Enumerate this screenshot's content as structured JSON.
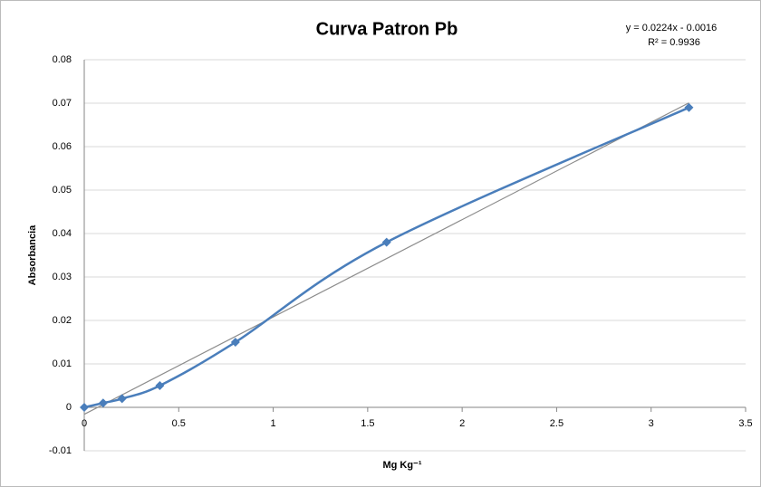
{
  "chart_data": {
    "type": "scatter",
    "title": "Curva Patron Pb",
    "x_label": "Mg Kg⁻¹",
    "y_label": "Absorbancia",
    "x": [
      0,
      0.1,
      0.2,
      0.4,
      0.8,
      1.6,
      3.2
    ],
    "series": [
      {
        "name": "Absorbancia",
        "color": "#4a7ebb",
        "values": [
          0,
          0.001,
          0.002,
          0.005,
          0.015,
          0.038,
          0.069
        ]
      }
    ],
    "xlim": [
      0,
      3.5
    ],
    "xticks": [
      0,
      0.5,
      1,
      1.5,
      2,
      2.5,
      3,
      3.5
    ],
    "ylim": [
      -0.01,
      0.08
    ],
    "yticks": [
      -0.01,
      0,
      0.01,
      0.02,
      0.03,
      0.04,
      0.05,
      0.06,
      0.07,
      0.08
    ],
    "grid": true,
    "smooth": true,
    "trendline": {
      "slope": 0.0224,
      "intercept": -0.0016,
      "color": "#8c8c8c"
    },
    "annotations": [
      "y = 0.0224x - 0.0016",
      "R² = 0.9936"
    ]
  }
}
